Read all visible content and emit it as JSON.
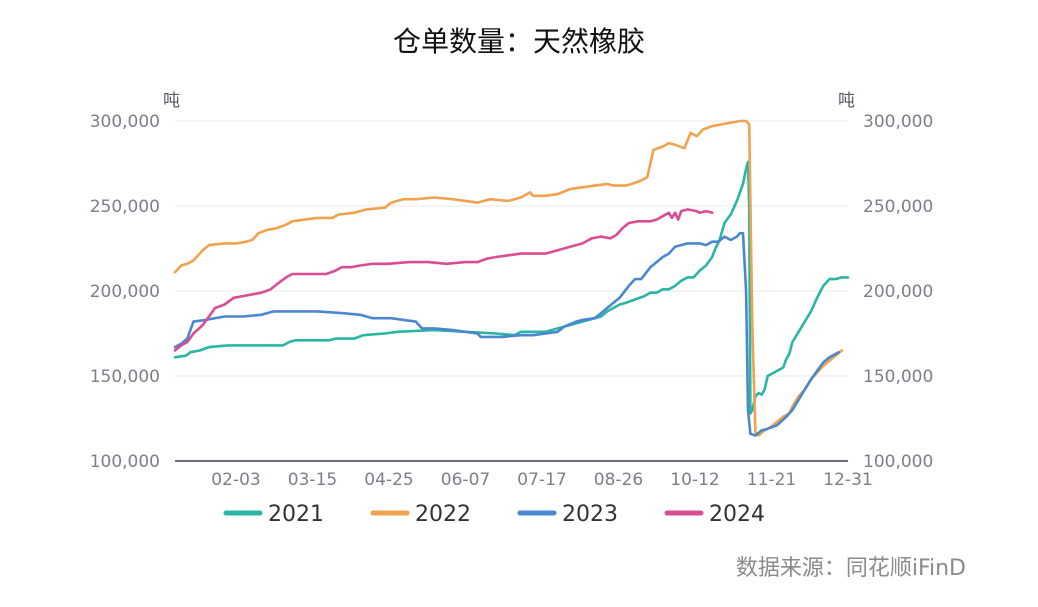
{
  "chart_data": {
    "type": "line",
    "title": "仓单数量：天然橡胶",
    "unit_left": "吨",
    "unit_right": "吨",
    "ylim": [
      100000,
      300000
    ],
    "y_ticks": [
      "100,000",
      "150,000",
      "200,000",
      "250,000",
      "300,000"
    ],
    "x_ticks": [
      "02-03",
      "03-15",
      "04-25",
      "06-07",
      "07-17",
      "08-26",
      "10-12",
      "11-21",
      "12-31"
    ],
    "grid": "horizontal",
    "legend_position": "bottom",
    "source": "数据来源：同花顺iFinD",
    "series": [
      {
        "name": "2021",
        "color": "#2bb5a5",
        "points": [
          [
            0.0,
            161000
          ],
          [
            0.018,
            162000
          ],
          [
            0.025,
            164000
          ],
          [
            0.04,
            165000
          ],
          [
            0.055,
            167000
          ],
          [
            0.085,
            168000
          ],
          [
            0.175,
            168000
          ],
          [
            0.185,
            170000
          ],
          [
            0.195,
            171000
          ],
          [
            0.25,
            171000
          ],
          [
            0.26,
            172000
          ],
          [
            0.29,
            172000
          ],
          [
            0.305,
            174000
          ],
          [
            0.34,
            175000
          ],
          [
            0.36,
            176000
          ],
          [
            0.42,
            177000
          ],
          [
            0.47,
            176000
          ],
          [
            0.52,
            175000
          ],
          [
            0.55,
            174000
          ],
          [
            0.56,
            176000
          ],
          [
            0.6,
            176000
          ],
          [
            0.62,
            178000
          ],
          [
            0.64,
            180000
          ],
          [
            0.66,
            182000
          ],
          [
            0.69,
            185000
          ],
          [
            0.7,
            188000
          ],
          [
            0.71,
            190000
          ],
          [
            0.72,
            192000
          ],
          [
            0.73,
            193000
          ],
          [
            0.745,
            195000
          ],
          [
            0.76,
            197000
          ],
          [
            0.77,
            199000
          ],
          [
            0.78,
            199000
          ],
          [
            0.79,
            201000
          ],
          [
            0.8,
            201000
          ],
          [
            0.81,
            203000
          ],
          [
            0.82,
            206000
          ],
          [
            0.83,
            208000
          ],
          [
            0.84,
            208000
          ],
          [
            0.85,
            212000
          ],
          [
            0.86,
            215000
          ],
          [
            0.87,
            220000
          ],
          [
            0.875,
            225000
          ],
          [
            0.882,
            230000
          ],
          [
            0.89,
            240000
          ],
          [
            0.9,
            245000
          ],
          [
            0.91,
            253000
          ],
          [
            0.92,
            263000
          ],
          [
            0.925,
            272000
          ],
          [
            0.928,
            276000
          ],
          [
            0.93,
            250000
          ],
          [
            0.932,
            128000
          ],
          [
            0.935,
            130000
          ],
          [
            0.94,
            138000
          ],
          [
            0.945,
            140000
          ],
          [
            0.95,
            139000
          ],
          [
            0.955,
            142000
          ],
          [
            0.96,
            150000
          ],
          [
            0.97,
            152000
          ],
          [
            0.985,
            155000
          ],
          [
            0.99,
            160000
          ],
          [
            0.995,
            163000
          ],
          [
            1.0,
            170000
          ],
          [
            1.01,
            176000
          ],
          [
            1.02,
            182000
          ],
          [
            1.03,
            188000
          ],
          [
            1.04,
            196000
          ],
          [
            1.05,
            203000
          ],
          [
            1.06,
            207000
          ],
          [
            1.07,
            207000
          ],
          [
            1.08,
            208000
          ],
          [
            1.09,
            208000
          ]
        ]
      },
      {
        "name": "2022",
        "color": "#f0a24e",
        "points": [
          [
            0.0,
            211000
          ],
          [
            0.01,
            215000
          ],
          [
            0.02,
            216000
          ],
          [
            0.03,
            218000
          ],
          [
            0.045,
            224000
          ],
          [
            0.055,
            227000
          ],
          [
            0.08,
            228000
          ],
          [
            0.1,
            228000
          ],
          [
            0.115,
            229000
          ],
          [
            0.125,
            230000
          ],
          [
            0.135,
            234000
          ],
          [
            0.15,
            236000
          ],
          [
            0.165,
            237000
          ],
          [
            0.18,
            239000
          ],
          [
            0.19,
            241000
          ],
          [
            0.21,
            242000
          ],
          [
            0.23,
            243000
          ],
          [
            0.255,
            243000
          ],
          [
            0.265,
            245000
          ],
          [
            0.29,
            246000
          ],
          [
            0.31,
            248000
          ],
          [
            0.34,
            249000
          ],
          [
            0.35,
            252000
          ],
          [
            0.37,
            254000
          ],
          [
            0.39,
            254000
          ],
          [
            0.42,
            255000
          ],
          [
            0.45,
            254000
          ],
          [
            0.47,
            253000
          ],
          [
            0.49,
            252000
          ],
          [
            0.51,
            254000
          ],
          [
            0.54,
            253000
          ],
          [
            0.56,
            255000
          ],
          [
            0.575,
            258000
          ],
          [
            0.58,
            256000
          ],
          [
            0.6,
            256000
          ],
          [
            0.62,
            257000
          ],
          [
            0.64,
            260000
          ],
          [
            0.66,
            261000
          ],
          [
            0.68,
            262000
          ],
          [
            0.7,
            263000
          ],
          [
            0.71,
            262000
          ],
          [
            0.72,
            262000
          ],
          [
            0.73,
            262000
          ],
          [
            0.74,
            263000
          ],
          [
            0.755,
            265000
          ],
          [
            0.765,
            267000
          ],
          [
            0.77,
            275000
          ],
          [
            0.775,
            283000
          ],
          [
            0.79,
            285000
          ],
          [
            0.8,
            287000
          ],
          [
            0.81,
            286000
          ],
          [
            0.825,
            284000
          ],
          [
            0.835,
            293000
          ],
          [
            0.845,
            291000
          ],
          [
            0.855,
            295000
          ],
          [
            0.87,
            297000
          ],
          [
            0.885,
            298000
          ],
          [
            0.9,
            299000
          ],
          [
            0.915,
            300000
          ],
          [
            0.925,
            300000
          ],
          [
            0.93,
            298000
          ],
          [
            0.935,
            180000
          ],
          [
            0.94,
            117000
          ],
          [
            0.945,
            115000
          ],
          [
            0.955,
            118000
          ],
          [
            0.965,
            120000
          ],
          [
            0.975,
            123000
          ],
          [
            0.985,
            126000
          ],
          [
            0.995,
            128000
          ],
          [
            1.0,
            132000
          ],
          [
            1.01,
            138000
          ],
          [
            1.02,
            142000
          ],
          [
            1.03,
            148000
          ],
          [
            1.04,
            152000
          ],
          [
            1.05,
            156000
          ],
          [
            1.06,
            159000
          ],
          [
            1.07,
            162000
          ],
          [
            1.08,
            165000
          ]
        ]
      },
      {
        "name": "2023",
        "color": "#4a87cf",
        "points": [
          [
            0.0,
            167000
          ],
          [
            0.01,
            169000
          ],
          [
            0.02,
            172000
          ],
          [
            0.03,
            182000
          ],
          [
            0.05,
            183000
          ],
          [
            0.08,
            185000
          ],
          [
            0.11,
            185000
          ],
          [
            0.14,
            186000
          ],
          [
            0.16,
            188000
          ],
          [
            0.19,
            188000
          ],
          [
            0.23,
            188000
          ],
          [
            0.27,
            187000
          ],
          [
            0.3,
            186000
          ],
          [
            0.32,
            184000
          ],
          [
            0.35,
            184000
          ],
          [
            0.37,
            183000
          ],
          [
            0.39,
            182000
          ],
          [
            0.4,
            178000
          ],
          [
            0.42,
            178000
          ],
          [
            0.45,
            177000
          ],
          [
            0.47,
            176000
          ],
          [
            0.49,
            175000
          ],
          [
            0.495,
            173000
          ],
          [
            0.51,
            173000
          ],
          [
            0.53,
            173000
          ],
          [
            0.56,
            174000
          ],
          [
            0.58,
            174000
          ],
          [
            0.6,
            175000
          ],
          [
            0.62,
            176000
          ],
          [
            0.63,
            179000
          ],
          [
            0.65,
            182000
          ],
          [
            0.66,
            183000
          ],
          [
            0.68,
            184000
          ],
          [
            0.7,
            190000
          ],
          [
            0.71,
            193000
          ],
          [
            0.72,
            196000
          ],
          [
            0.735,
            203000
          ],
          [
            0.745,
            207000
          ],
          [
            0.755,
            207000
          ],
          [
            0.77,
            214000
          ],
          [
            0.78,
            217000
          ],
          [
            0.79,
            220000
          ],
          [
            0.8,
            222000
          ],
          [
            0.81,
            226000
          ],
          [
            0.83,
            228000
          ],
          [
            0.85,
            228000
          ],
          [
            0.86,
            227000
          ],
          [
            0.87,
            229000
          ],
          [
            0.88,
            229000
          ],
          [
            0.89,
            232000
          ],
          [
            0.9,
            230000
          ],
          [
            0.91,
            232000
          ],
          [
            0.915,
            234000
          ],
          [
            0.92,
            234000
          ],
          [
            0.925,
            200000
          ],
          [
            0.928,
            130000
          ],
          [
            0.932,
            116000
          ],
          [
            0.94,
            115000
          ],
          [
            0.95,
            118000
          ],
          [
            0.96,
            119000
          ],
          [
            0.975,
            121000
          ],
          [
            0.99,
            126000
          ],
          [
            1.0,
            130000
          ],
          [
            1.01,
            136000
          ],
          [
            1.02,
            142000
          ],
          [
            1.03,
            148000
          ],
          [
            1.04,
            153000
          ],
          [
            1.05,
            158000
          ],
          [
            1.06,
            161000
          ],
          [
            1.07,
            163000
          ],
          [
            1.075,
            164000
          ]
        ]
      },
      {
        "name": "2024",
        "color": "#d94d94",
        "points": [
          [
            0.0,
            165000
          ],
          [
            0.01,
            168000
          ],
          [
            0.02,
            170000
          ],
          [
            0.03,
            175000
          ],
          [
            0.045,
            180000
          ],
          [
            0.055,
            185000
          ],
          [
            0.065,
            190000
          ],
          [
            0.08,
            192000
          ],
          [
            0.095,
            196000
          ],
          [
            0.11,
            197000
          ],
          [
            0.14,
            199000
          ],
          [
            0.155,
            201000
          ],
          [
            0.165,
            204000
          ],
          [
            0.18,
            208000
          ],
          [
            0.19,
            210000
          ],
          [
            0.215,
            210000
          ],
          [
            0.245,
            210000
          ],
          [
            0.26,
            212000
          ],
          [
            0.27,
            214000
          ],
          [
            0.285,
            214000
          ],
          [
            0.3,
            215000
          ],
          [
            0.32,
            216000
          ],
          [
            0.345,
            216000
          ],
          [
            0.38,
            217000
          ],
          [
            0.41,
            217000
          ],
          [
            0.44,
            216000
          ],
          [
            0.47,
            217000
          ],
          [
            0.49,
            217000
          ],
          [
            0.505,
            219000
          ],
          [
            0.52,
            220000
          ],
          [
            0.54,
            221000
          ],
          [
            0.56,
            222000
          ],
          [
            0.6,
            222000
          ],
          [
            0.62,
            224000
          ],
          [
            0.64,
            226000
          ],
          [
            0.66,
            228000
          ],
          [
            0.675,
            231000
          ],
          [
            0.69,
            232000
          ],
          [
            0.705,
            231000
          ],
          [
            0.715,
            233000
          ],
          [
            0.725,
            237000
          ],
          [
            0.735,
            240000
          ],
          [
            0.75,
            241000
          ],
          [
            0.77,
            241000
          ],
          [
            0.78,
            242000
          ],
          [
            0.79,
            244000
          ],
          [
            0.8,
            246000
          ],
          [
            0.805,
            243000
          ],
          [
            0.81,
            246000
          ],
          [
            0.815,
            242000
          ],
          [
            0.82,
            247000
          ],
          [
            0.83,
            248000
          ],
          [
            0.845,
            247000
          ],
          [
            0.85,
            246000
          ],
          [
            0.86,
            247000
          ],
          [
            0.87,
            246000
          ]
        ]
      }
    ]
  }
}
